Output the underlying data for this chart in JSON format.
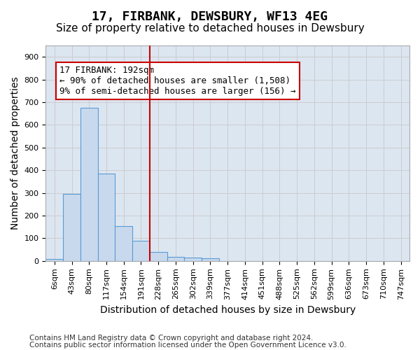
{
  "title": "17, FIRBANK, DEWSBURY, WF13 4EG",
  "subtitle": "Size of property relative to detached houses in Dewsbury",
  "xlabel": "Distribution of detached houses by size in Dewsbury",
  "ylabel": "Number of detached properties",
  "bin_labels": [
    "6sqm",
    "43sqm",
    "80sqm",
    "117sqm",
    "154sqm",
    "191sqm",
    "228sqm",
    "265sqm",
    "302sqm",
    "339sqm",
    "377sqm",
    "414sqm",
    "451sqm",
    "488sqm",
    "525sqm",
    "562sqm",
    "599sqm",
    "636sqm",
    "673sqm",
    "710sqm",
    "747sqm"
  ],
  "bar_heights": [
    10,
    295,
    675,
    385,
    155,
    90,
    40,
    17,
    16,
    12,
    0,
    0,
    0,
    0,
    0,
    0,
    0,
    0,
    0,
    0,
    0
  ],
  "bar_color": "#c9d9ed",
  "bar_edge_color": "#5a9bd5",
  "vline_color": "#cc0000",
  "vline_pos": 5.5,
  "annotation_text": "17 FIRBANK: 192sqm\n← 90% of detached houses are smaller (1,508)\n9% of semi-detached houses are larger (156) →",
  "annotation_box_color": "#ffffff",
  "annotation_box_edge_color": "#cc0000",
  "ylim": [
    0,
    950
  ],
  "yticks": [
    0,
    100,
    200,
    300,
    400,
    500,
    600,
    700,
    800,
    900
  ],
  "grid_color": "#cccccc",
  "plot_bg_color": "#dce6f1",
  "footer_line1": "Contains HM Land Registry data © Crown copyright and database right 2024.",
  "footer_line2": "Contains public sector information licensed under the Open Government Licence v3.0.",
  "title_fontsize": 13,
  "subtitle_fontsize": 11,
  "axis_label_fontsize": 10,
  "tick_fontsize": 8,
  "annotation_fontsize": 9,
  "footer_fontsize": 7.5
}
